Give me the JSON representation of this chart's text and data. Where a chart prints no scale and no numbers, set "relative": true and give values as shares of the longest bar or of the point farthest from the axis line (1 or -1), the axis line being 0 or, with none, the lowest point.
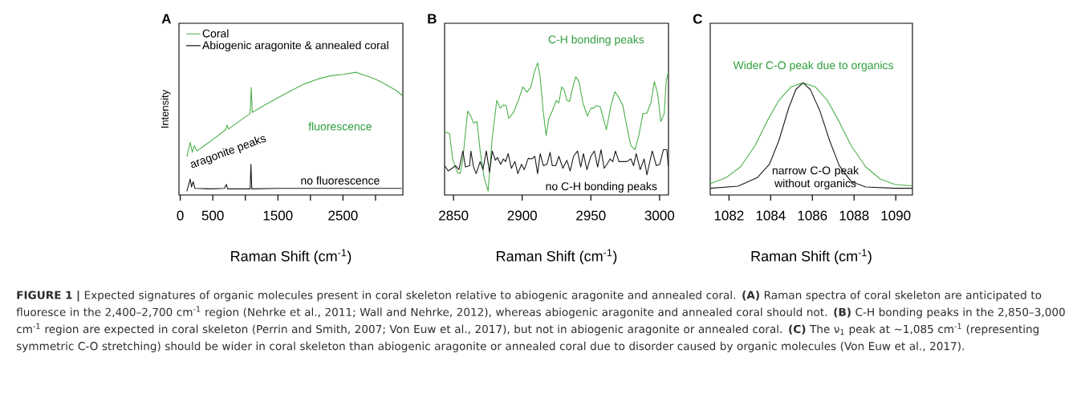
{
  "chart_data": [
    {
      "type": "line",
      "title": "A",
      "xlabel": "Raman Shift (cm$^{-1}$)",
      "ylabel": "Intensity",
      "relative": true,
      "marker": "none",
      "legend": "top left",
      "xlim": [
        -20,
        3420
      ],
      "xticks": [
        0,
        500,
        {
          "value": 1000,
          "label": null
        },
        1500,
        {
          "value": 2000,
          "label": null
        },
        2500,
        {
          "value": 3000,
          "label": null
        }
      ],
      "annotations": [
        "aragonite peaks",
        "fluorescence",
        "no fluorescence",
        "**FIGURE 1 |** Expected signatures of organic molecules present in coral skeleton relative to abiogenic aragonite and annealed coral. **(A)** Raman spectra of coral skeleton are anticipated to fluoresce in the 2,400–2,700 cm$^{-1}$ region (Nehrke et al., 2011; Wall and Nehrke, 2012), whereas abiogenic aragonite and annealed coral should not. **(B)** C-H bonding peaks in the 2,850–3,000 cm$^{-1}$ region are expected in coral skeleton (Perrin and Smith, 2007; Von Euw et al., 2017), but not in abiogenic aragonite or annealed coral. **(C)** The ν$_{1}$ peak at ∼1,085 cm$^{-1}$ (representing symmetric C-O stretching) should be wider in coral skeleton than abiogenic aragonite or annealed coral due to disorder caused by organic molecules (Von Euw et al., 2017)."
      ],
      "series": [
        {
          "name": "Coral",
          "color": "#4cb04c",
          "x": [
            103,
            152,
            185,
            214,
            255,
            473,
            700,
            720,
            741,
            926,
            1074,
            1091,
            1107,
            1296,
            1502,
            1708,
            1914,
            2119,
            2325,
            2502,
            2695,
            2819,
            2942,
            3066,
            3189,
            3313,
            3410
          ],
          "values": [
            0.315,
            0.428,
            0.348,
            0.402,
            0.359,
            0.441,
            0.533,
            0.57,
            0.537,
            0.609,
            0.663,
            0.876,
            0.674,
            0.733,
            0.793,
            0.852,
            0.907,
            0.946,
            0.974,
            0.983,
            1.0,
            0.978,
            0.957,
            0.928,
            0.891,
            0.854,
            0.811
          ]
        },
        {
          "name": "Abiogenic aragonite & annealed coral",
          "color": "#1a1a1a",
          "x": [
            103,
            152,
            173,
            198,
            226,
            473,
            679,
            708,
            728,
            1074,
            1086,
            1099,
            1502,
            2325,
            3395
          ],
          "values": [
            0.033,
            0.13,
            0.065,
            0.109,
            0.054,
            0.05,
            0.054,
            0.087,
            0.05,
            0.05,
            0.25,
            0.05,
            0.054,
            0.054,
            0.054
          ]
        }
      ]
    },
    {
      "type": "line",
      "title": "B",
      "xlabel": "Raman Shift (cm$^{-1}$)",
      "relative": true,
      "marker": "none",
      "xlim": [
        2843.5,
        3006.5
      ],
      "xticks": [
        2850,
        2900,
        2950,
        3000
      ],
      "annotations": [
        "C-H bonding peaks",
        "no C-H bonding peaks"
      ],
      "series": [
        {
          "color": "#4cb04c",
          "x": [
            2843.6,
            2847.1,
            2849.4,
            2852.9,
            2854.9,
            2856.8,
            2860.3,
            2862.6,
            2864.6,
            2867.1,
            2869.4,
            2872.3,
            2875.2,
            2878.2,
            2881.5,
            2884.0,
            2886.3,
            2888.3,
            2890.2,
            2893.7,
            2897.2,
            2900.5,
            2903.4,
            2906.3,
            2908.8,
            2911.2,
            2913.1,
            2915.4,
            2917.4,
            2919.3,
            2921.9,
            2924.8,
            2926.7,
            2928.7,
            2930.6,
            2932.5,
            2934.5,
            2936.4,
            2938.9,
            2941.3,
            2944.2,
            2947.5,
            2950.0,
            2952.0,
            2953.9,
            2956.8,
            2958.4,
            2961.3,
            2964.6,
            2967.5,
            2970.4,
            2973.3,
            2976.2,
            2979.1,
            2982.1,
            2985.0,
            2987.9,
            2990.8,
            2993.7,
            2996.2,
            2998.6,
            3000.9,
            3003.4,
            3004.8,
            3006.3
          ],
          "values": [
            0.479,
            0.465,
            0.273,
            0.168,
            0.162,
            0.273,
            0.636,
            0.596,
            0.545,
            0.556,
            0.333,
            0.131,
            0.03,
            0.434,
            0.717,
            0.657,
            0.681,
            0.677,
            0.58,
            0.626,
            0.717,
            0.818,
            0.778,
            0.818,
            0.929,
            1.0,
            0.889,
            0.626,
            0.451,
            0.576,
            0.636,
            0.717,
            0.697,
            0.818,
            0.794,
            0.717,
            0.707,
            0.798,
            0.895,
            0.859,
            0.697,
            0.596,
            0.657,
            0.657,
            0.677,
            0.667,
            0.606,
            0.495,
            0.677,
            0.782,
            0.737,
            0.677,
            0.515,
            0.374,
            0.343,
            0.455,
            0.616,
            0.62,
            0.697,
            0.859,
            0.768,
            0.556,
            0.616,
            0.859,
            0.929
          ]
        },
        {
          "color": "#1a1a1a",
          "x": [
            2843.6,
            2846.1,
            2849.0,
            2851.4,
            2853.9,
            2856.8,
            2858.7,
            2861.7,
            2862.6,
            2864.6,
            2866.5,
            2869.4,
            2871.4,
            2873.9,
            2876.2,
            2878.2,
            2880.5,
            2882.0,
            2884.4,
            2886.3,
            2887.9,
            2889.8,
            2892.1,
            2894.7,
            2896.8,
            2899.5,
            2901.5,
            2904.4,
            2906.9,
            2909.2,
            2911.2,
            2913.1,
            2915.4,
            2918.0,
            2920.3,
            2921.9,
            2924.4,
            2926.7,
            2929.6,
            2932.5,
            2934.9,
            2937.4,
            2940.3,
            2942.6,
            2944.6,
            2947.1,
            2950.0,
            2952.5,
            2954.9,
            2957.4,
            2959.7,
            2961.7,
            2964.0,
            2965.9,
            2967.9,
            2970.4,
            2973.3,
            2976.2,
            2979.1,
            2981.1,
            2983.0,
            2985.9,
            2988.8,
            2990.8,
            2992.7,
            2994.7,
            2997.6,
            3000.1,
            3002.8,
            3005.3,
            3006.3
          ],
          "values": [
            0.222,
            0.182,
            0.202,
            0.222,
            0.192,
            0.333,
            0.212,
            0.222,
            0.333,
            0.212,
            0.162,
            0.253,
            0.192,
            0.333,
            0.172,
            0.333,
            0.263,
            0.283,
            0.232,
            0.273,
            0.253,
            0.313,
            0.202,
            0.253,
            0.162,
            0.232,
            0.192,
            0.277,
            0.273,
            0.293,
            0.162,
            0.313,
            0.222,
            0.232,
            0.323,
            0.222,
            0.222,
            0.293,
            0.202,
            0.263,
            0.182,
            0.293,
            0.333,
            0.212,
            0.313,
            0.192,
            0.293,
            0.333,
            0.212,
            0.343,
            0.202,
            0.232,
            0.273,
            0.253,
            0.333,
            0.253,
            0.253,
            0.253,
            0.273,
            0.222,
            0.313,
            0.192,
            0.273,
            0.152,
            0.242,
            0.333,
            0.222,
            0.232,
            0.343,
            0.343,
            0.222
          ]
        }
      ]
    },
    {
      "type": "line",
      "title": "C",
      "xlabel": "Raman Shift (cm$^{-1}$)",
      "relative": true,
      "marker": "none",
      "xlim": [
        1081.1,
        1090.8
      ],
      "xticks": [
        1082,
        1084,
        1086,
        1088,
        1090
      ],
      "annotations": [
        "Wider C-O peak due to organics",
        "narrow C-O peak without organics"
      ],
      "series": [
        {
          "color": "#4cb04c",
          "x": [
            1081.11,
            1081.86,
            1082.55,
            1083.25,
            1083.82,
            1084.4,
            1084.98,
            1085.55,
            1086.13,
            1086.71,
            1087.28,
            1087.86,
            1088.56,
            1089.25,
            1089.94,
            1090.8
          ],
          "values": [
            0.102,
            0.155,
            0.25,
            0.44,
            0.655,
            0.845,
            0.964,
            1.0,
            0.964,
            0.845,
            0.655,
            0.44,
            0.25,
            0.143,
            0.095,
            0.08
          ]
        },
        {
          "color": "#1a1a1a",
          "x": [
            1081.11,
            1082.44,
            1083.36,
            1083.94,
            1084.4,
            1084.86,
            1085.21,
            1085.55,
            1085.9,
            1086.36,
            1086.82,
            1087.29,
            1087.86,
            1088.56,
            1089.94,
            1090.8
          ],
          "values": [
            0.06,
            0.079,
            0.155,
            0.274,
            0.488,
            0.774,
            0.94,
            1.0,
            0.94,
            0.75,
            0.488,
            0.262,
            0.119,
            0.071,
            0.06,
            0.06
          ]
        }
      ]
    }
  ]
}
